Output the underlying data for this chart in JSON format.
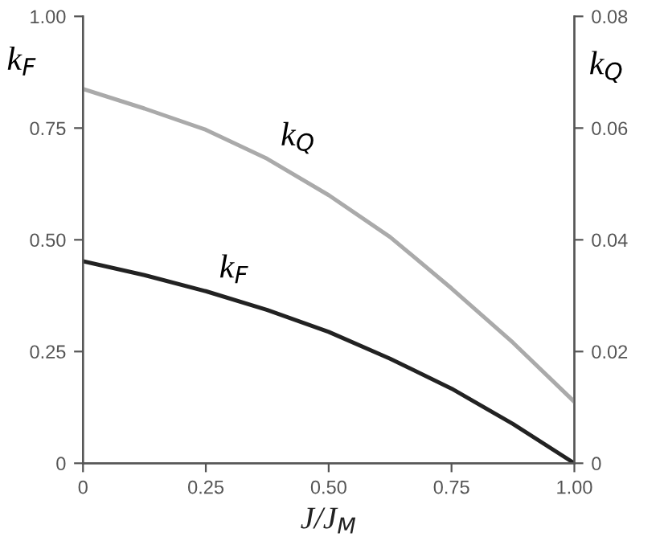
{
  "chart_data": {
    "type": "line",
    "xlabel": "J/J$_{M}$",
    "ylabel": "k$_{F}$",
    "y2label": "k$_{Q}$",
    "x": [
      0,
      0.125,
      0.25,
      0.375,
      0.5,
      0.625,
      0.75,
      0.875,
      1.0
    ],
    "series": [
      {
        "name": "k$_{Q}$",
        "color": "#aaaaaa",
        "axis": "y2",
        "values": [
          0.067,
          0.0635,
          0.0597,
          0.0545,
          0.048,
          0.0405,
          0.0313,
          0.0216,
          0.011
        ]
      },
      {
        "name": "k$_{F}$",
        "color": "#222222",
        "values": [
          0.452,
          0.421,
          0.385,
          0.343,
          0.294,
          0.234,
          0.167,
          0.088,
          0.0
        ]
      }
    ],
    "xlim": [
      0,
      1
    ],
    "xticks": [
      0,
      0.25,
      {
        "value": 0.5,
        "label": "0.50"
      },
      0.75,
      {
        "value": 1,
        "label": "1.00"
      }
    ],
    "ylim": [
      0,
      1
    ],
    "yticks": [
      0,
      0.25,
      {
        "value": 0.5,
        "label": "0.50"
      },
      0.75,
      {
        "value": 1,
        "label": "1.00"
      }
    ],
    "y2lim": [
      0,
      0.08
    ],
    "y2ticks": [
      0,
      0.02,
      0.04,
      0.06,
      0.08
    ],
    "grid": false,
    "legend": false
  }
}
